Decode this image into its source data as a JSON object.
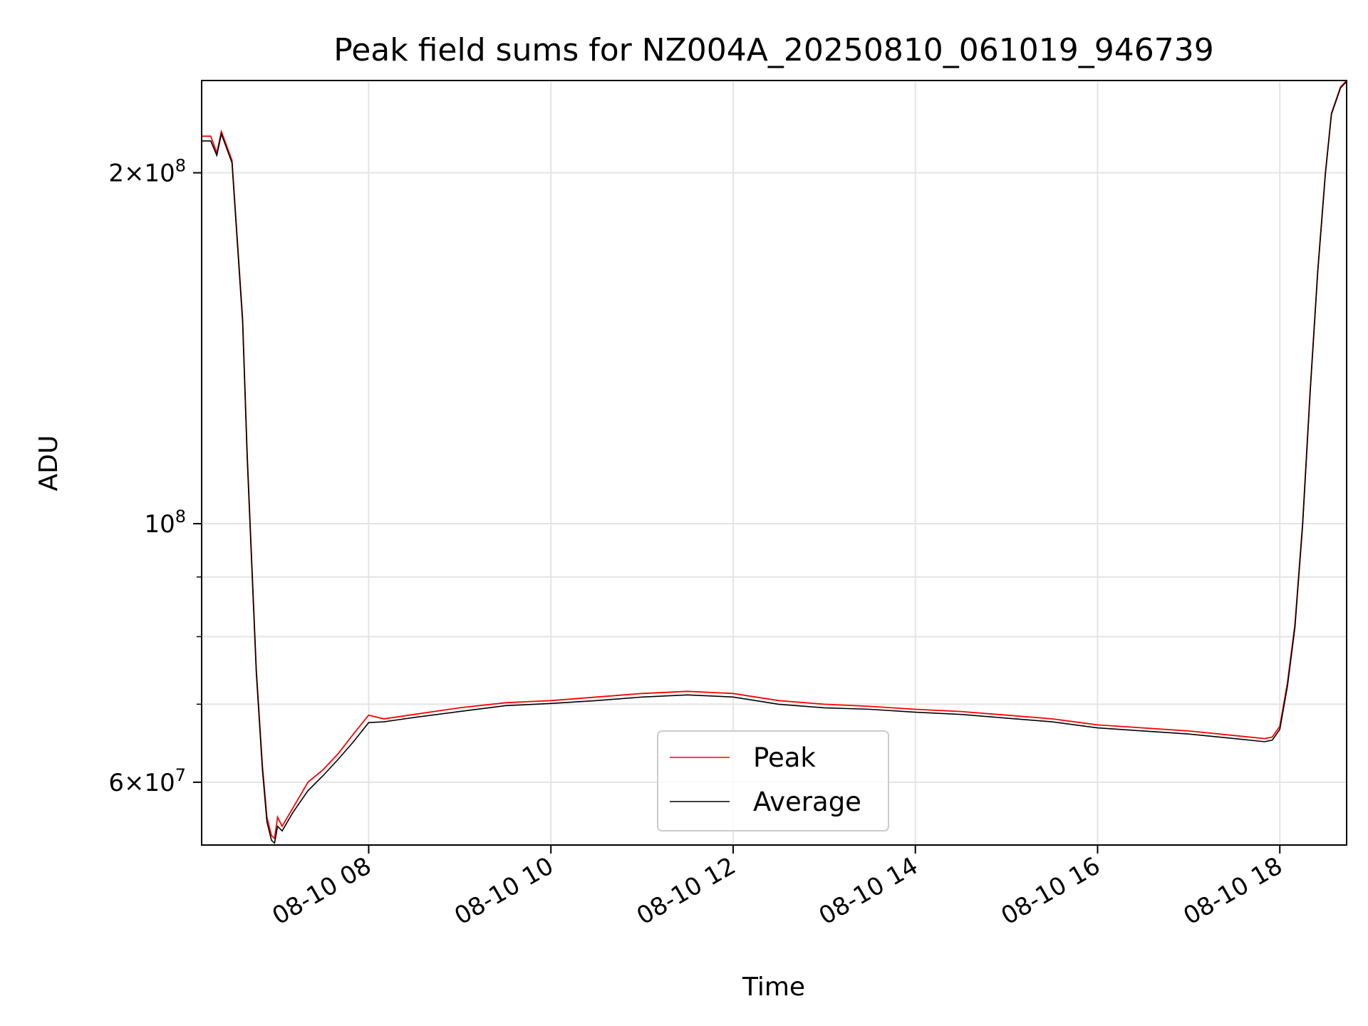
{
  "chart_data": {
    "type": "line",
    "title": "Peak field sums for NZ004A_20250810_061019_946739",
    "xlabel": "Time",
    "ylabel": "ADU",
    "x_axis": {
      "kind": "time",
      "min": "2025-08-10T06:10",
      "max": "2025-08-10T18:44",
      "ticks": [
        "2025-08-10T08:00",
        "2025-08-10T10:00",
        "2025-08-10T12:00",
        "2025-08-10T14:00",
        "2025-08-10T16:00",
        "2025-08-10T18:00"
      ],
      "tick_labels": [
        "08-10 08",
        "08-10 10",
        "08-10 12",
        "08-10 14",
        "08-10 16",
        "08-10 18"
      ]
    },
    "y_axis": {
      "scale": "log",
      "ylim": [
        53000000,
        240000000
      ],
      "major_ticks": [
        60000000,
        100000000,
        200000000
      ],
      "major_tick_base": [
        "6",
        "",
        "2"
      ],
      "major_tick_exp": [
        "7",
        "8",
        "8"
      ],
      "minor_ticks": [
        70000000,
        80000000,
        90000000
      ]
    },
    "grid": true,
    "legend": "lower-center",
    "series": [
      {
        "name": "Peak",
        "color": "#ff0000",
        "x": [
          "2025-08-10T06:10",
          "2025-08-10T06:16",
          "2025-08-10T06:20",
          "2025-08-10T06:23",
          "2025-08-10T06:30",
          "2025-08-10T06:37",
          "2025-08-10T06:40",
          "2025-08-10T06:46",
          "2025-08-10T06:50",
          "2025-08-10T06:53",
          "2025-08-10T06:56",
          "2025-08-10T06:58",
          "2025-08-10T07:00",
          "2025-08-10T07:03",
          "2025-08-10T07:10",
          "2025-08-10T07:20",
          "2025-08-10T07:30",
          "2025-08-10T07:40",
          "2025-08-10T07:50",
          "2025-08-10T08:00",
          "2025-08-10T08:10",
          "2025-08-10T08:20",
          "2025-08-10T08:30",
          "2025-08-10T09:00",
          "2025-08-10T09:30",
          "2025-08-10T10:00",
          "2025-08-10T10:30",
          "2025-08-10T11:00",
          "2025-08-10T11:30",
          "2025-08-10T12:00",
          "2025-08-10T12:30",
          "2025-08-10T13:00",
          "2025-08-10T13:30",
          "2025-08-10T14:00",
          "2025-08-10T14:30",
          "2025-08-10T15:00",
          "2025-08-10T15:30",
          "2025-08-10T16:00",
          "2025-08-10T16:30",
          "2025-08-10T17:00",
          "2025-08-10T17:30",
          "2025-08-10T17:50",
          "2025-08-10T17:55",
          "2025-08-10T18:00",
          "2025-08-10T18:05",
          "2025-08-10T18:10",
          "2025-08-10T18:15",
          "2025-08-10T18:20",
          "2025-08-10T18:25",
          "2025-08-10T18:30",
          "2025-08-10T18:34",
          "2025-08-10T18:40",
          "2025-08-10T18:44"
        ],
        "values": [
          215000000,
          215000000,
          208000000,
          217000000,
          205000000,
          150000000,
          115000000,
          75000000,
          62000000,
          56000000,
          54000000,
          53700000,
          56000000,
          55000000,
          57000000,
          60000000,
          61500000,
          63500000,
          66000000,
          68500000,
          68000000,
          68300000,
          68600000,
          69500000,
          70200000,
          70500000,
          71000000,
          71500000,
          71800000,
          71500000,
          70500000,
          70000000,
          69700000,
          69300000,
          69000000,
          68500000,
          68000000,
          67200000,
          66800000,
          66400000,
          65800000,
          65400000,
          65600000,
          67000000,
          73000000,
          82000000,
          100000000,
          130000000,
          165000000,
          200000000,
          225000000,
          237000000,
          240000000
        ]
      },
      {
        "name": "Average",
        "color": "#000000",
        "x": [
          "2025-08-10T06:10",
          "2025-08-10T06:16",
          "2025-08-10T06:20",
          "2025-08-10T06:23",
          "2025-08-10T06:30",
          "2025-08-10T06:37",
          "2025-08-10T06:40",
          "2025-08-10T06:46",
          "2025-08-10T06:50",
          "2025-08-10T06:53",
          "2025-08-10T06:56",
          "2025-08-10T06:58",
          "2025-08-10T07:00",
          "2025-08-10T07:03",
          "2025-08-10T07:10",
          "2025-08-10T07:20",
          "2025-08-10T07:30",
          "2025-08-10T07:40",
          "2025-08-10T07:50",
          "2025-08-10T08:00",
          "2025-08-10T08:10",
          "2025-08-10T08:20",
          "2025-08-10T08:30",
          "2025-08-10T09:00",
          "2025-08-10T09:30",
          "2025-08-10T10:00",
          "2025-08-10T10:30",
          "2025-08-10T11:00",
          "2025-08-10T11:30",
          "2025-08-10T12:00",
          "2025-08-10T12:30",
          "2025-08-10T13:00",
          "2025-08-10T13:30",
          "2025-08-10T14:00",
          "2025-08-10T14:30",
          "2025-08-10T15:00",
          "2025-08-10T15:30",
          "2025-08-10T16:00",
          "2025-08-10T16:30",
          "2025-08-10T17:00",
          "2025-08-10T17:30",
          "2025-08-10T17:50",
          "2025-08-10T17:55",
          "2025-08-10T18:00",
          "2025-08-10T18:05",
          "2025-08-10T18:10",
          "2025-08-10T18:15",
          "2025-08-10T18:20",
          "2025-08-10T18:25",
          "2025-08-10T18:30",
          "2025-08-10T18:34",
          "2025-08-10T18:40",
          "2025-08-10T18:44"
        ],
        "values": [
          213000000,
          213000000,
          207000000,
          216000000,
          204000000,
          149000000,
          114000000,
          74500000,
          61500000,
          55500000,
          53500000,
          53200000,
          55000000,
          54500000,
          56500000,
          59000000,
          60800000,
          62800000,
          65000000,
          67500000,
          67600000,
          67900000,
          68200000,
          69000000,
          69800000,
          70100000,
          70500000,
          71000000,
          71300000,
          71000000,
          70000000,
          69500000,
          69300000,
          68900000,
          68600000,
          68100000,
          67600000,
          66800000,
          66400000,
          66000000,
          65400000,
          65000000,
          65200000,
          66600000,
          72500000,
          81500000,
          99500000,
          129500000,
          164500000,
          199500000,
          224500000,
          236500000,
          239500000
        ]
      }
    ]
  }
}
